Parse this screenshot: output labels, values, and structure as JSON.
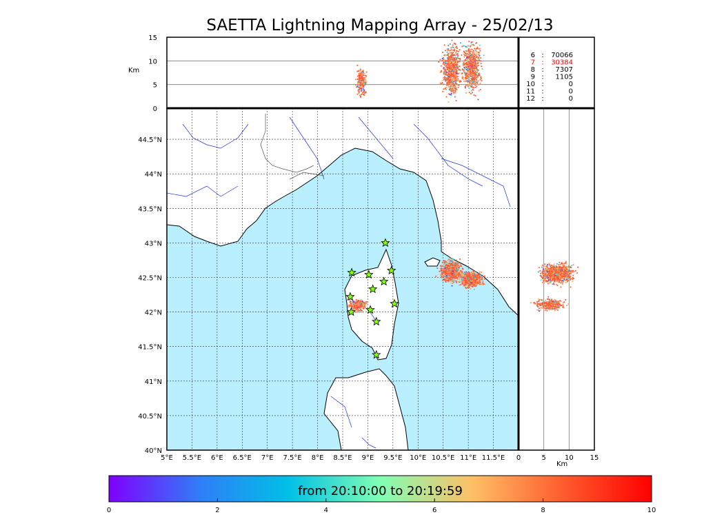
{
  "chart_data": {
    "type": "scatter",
    "title": "SAETTA Lightning Mapping Array - 25/02/13",
    "map": {
      "lon_range": [
        5,
        12
      ],
      "lat_range": [
        40,
        44.95
      ],
      "x_ticks": [
        "5°E",
        "5.5°E",
        "6°E",
        "6.5°E",
        "7°E",
        "7.5°E",
        "8°E",
        "8.5°E",
        "9°E",
        "9.5°E",
        "10°E",
        "10.5°E",
        "11°E",
        "11.5°E"
      ],
      "y_ticks": [
        "40°N",
        "40.5°N",
        "41°N",
        "41.5°N",
        "42°N",
        "42.5°N",
        "43°N",
        "43.5°N",
        "44°N",
        "44.5°N"
      ],
      "grid": true,
      "sea_color": "#b9efff",
      "stations": [
        {
          "lon": 9.35,
          "lat": 43.0
        },
        {
          "lon": 8.68,
          "lat": 42.57
        },
        {
          "lon": 9.02,
          "lat": 42.54
        },
        {
          "lon": 9.47,
          "lat": 42.6
        },
        {
          "lon": 9.32,
          "lat": 42.44
        },
        {
          "lon": 9.1,
          "lat": 42.33
        },
        {
          "lon": 8.65,
          "lat": 42.22
        },
        {
          "lon": 9.53,
          "lat": 42.12
        },
        {
          "lon": 8.67,
          "lat": 42.0
        },
        {
          "lon": 9.05,
          "lat": 42.03
        },
        {
          "lon": 9.17,
          "lat": 41.86
        },
        {
          "lon": 9.17,
          "lat": 41.38
        }
      ],
      "clusters": [
        {
          "lon_range": [
            10.45,
            10.85
          ],
          "lat_range": [
            42.45,
            42.75
          ],
          "density": "high"
        },
        {
          "lon_range": [
            10.85,
            11.25
          ],
          "lat_range": [
            42.38,
            42.58
          ],
          "density": "high"
        },
        {
          "lon_range": [
            8.62,
            8.95
          ],
          "lat_range": [
            42.03,
            42.18
          ],
          "density": "medium"
        }
      ]
    },
    "top_panel": {
      "ylabel": "Km",
      "y_ticks": [
        "0",
        "5",
        "10",
        "15"
      ],
      "ylim": [
        0,
        15
      ],
      "clusters": [
        {
          "lon_range": [
            8.75,
            8.97
          ],
          "alt_range": [
            2,
            9
          ]
        },
        {
          "lon_range": [
            10.45,
            10.85
          ],
          "alt_range": [
            2,
            14
          ]
        },
        {
          "lon_range": [
            10.85,
            11.25
          ],
          "alt_range": [
            3,
            14
          ]
        }
      ]
    },
    "right_panel": {
      "xlabel": "Km",
      "x_ticks": [
        "0",
        "5",
        "10",
        "15"
      ],
      "xlim": [
        0,
        15
      ],
      "clusters": [
        {
          "alt_range": [
            1,
            14
          ],
          "lat_range": [
            42.4,
            42.72
          ]
        },
        {
          "alt_range": [
            0,
            12
          ],
          "lat_range": [
            42.02,
            42.2
          ]
        }
      ]
    },
    "station_counts": [
      {
        "stations": "6",
        "count": "70066",
        "color": "#000000"
      },
      {
        "stations": "7",
        "count": "30384",
        "color": "#ff0000"
      },
      {
        "stations": "8",
        "count": "7307",
        "color": "#000000"
      },
      {
        "stations": "9",
        "count": "1105",
        "color": "#000000"
      },
      {
        "stations": "10",
        "count": "0",
        "color": "#000000"
      },
      {
        "stations": "11",
        "count": "0",
        "color": "#000000"
      },
      {
        "stations": "12",
        "count": "0",
        "color": "#000000"
      }
    ],
    "colorbar": {
      "label": "from 20:10:00 to 20:19:59",
      "ticks": [
        "0",
        "2",
        "4",
        "6",
        "8",
        "10"
      ],
      "range": [
        0,
        10
      ],
      "colors": [
        "#7f00ff",
        "#2f7ff7",
        "#00bfe6",
        "#80ffb4",
        "#ffbf66",
        "#ff6030",
        "#ff0000"
      ]
    }
  }
}
